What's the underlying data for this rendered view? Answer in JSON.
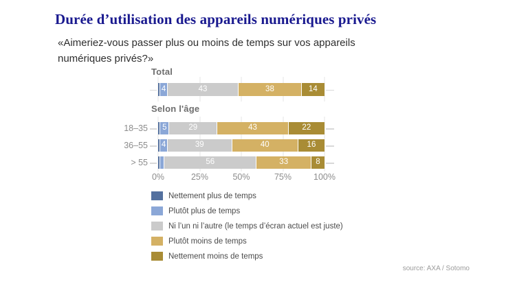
{
  "page": {
    "title": "Durée d’utilisation des appareils numériques privés",
    "subtitle": "«Aimeriez-vous passer plus ou moins de temps sur vos appareils numériques privés?»",
    "source": "source: AXA / Sotomo"
  },
  "chart_data": {
    "type": "bar",
    "orientation": "horizontal",
    "stacked": true,
    "value_unit": "%",
    "xlim": [
      0,
      100
    ],
    "grid": true,
    "legend_position": "bottom",
    "x_ticks": [
      {
        "pos": 0,
        "label": "0%"
      },
      {
        "pos": 25,
        "label": "25%"
      },
      {
        "pos": 50,
        "label": "50%"
      },
      {
        "pos": 75,
        "label": "75%"
      },
      {
        "pos": 100,
        "label": "100%"
      }
    ],
    "legend": [
      {
        "label": "Nettement plus de temps",
        "color": "#54719f"
      },
      {
        "label": "Plutôt plus de temps",
        "color": "#8ba7d7"
      },
      {
        "label": "Ni l’un ni l’autre (le temps d’écran actuel est juste)",
        "color": "#cbcbcb"
      },
      {
        "label": "Plutôt moins de temps",
        "color": "#d4b164"
      },
      {
        "label": "Nettement moins de temps",
        "color": "#a98c35"
      }
    ],
    "sections": [
      {
        "header": "Total",
        "rows": [
          {
            "label": "",
            "values": [
              1,
              4,
              43,
              38,
              14
            ]
          }
        ]
      },
      {
        "header": "Selon l'âge",
        "rows": [
          {
            "label": "18–35",
            "values": [
              1,
              5,
              29,
              43,
              22
            ]
          },
          {
            "label": "36–55",
            "values": [
              1,
              4,
              39,
              40,
              16
            ]
          },
          {
            "label": "> 55",
            "values": [
              1,
              2,
              56,
              33,
              8
            ]
          }
        ]
      }
    ]
  }
}
